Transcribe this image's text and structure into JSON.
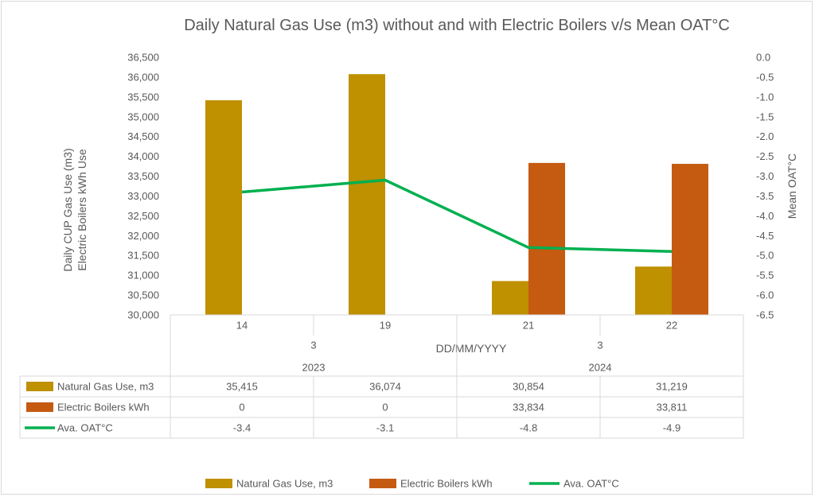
{
  "chart_data": {
    "type": "bar",
    "title": "Daily Natural Gas Use (m3) without and with Electric Boilers v/s Mean OAT°C",
    "xlabel": "DD/MM/YYYY",
    "ylabel_line1": "Daily CUP Gas Use (m3)",
    "ylabel_line2": "Electric Boilers kWh Use",
    "y2label": "Mean OAT°C",
    "ylim": [
      30000,
      36500
    ],
    "y_ticks": [
      "30,000",
      "30,500",
      "31,000",
      "31,500",
      "32,000",
      "32,500",
      "33,000",
      "33,500",
      "34,000",
      "34,500",
      "35,000",
      "35,500",
      "36,000",
      "36,500"
    ],
    "y2lim": [
      -6.5,
      0
    ],
    "y2_ticks": [
      "0.0",
      "-0.5",
      "-1.0",
      "-1.5",
      "-2.0",
      "-2.5",
      "-3.0",
      "-3.5",
      "-4.0",
      "-4.5",
      "-5.0",
      "-5.5",
      "-6.0",
      "-6.5"
    ],
    "categories": [
      "14",
      "19",
      "21",
      "22"
    ],
    "months": [
      "3",
      "3"
    ],
    "years": [
      "2023",
      "2024"
    ],
    "series": [
      {
        "name": "Natural Gas Use, m3",
        "kind": "bar",
        "color": "#bf9000",
        "values": [
          35415,
          36074,
          30854,
          31219
        ],
        "labels": [
          "35,415",
          "36,074",
          "30,854",
          "31,219"
        ]
      },
      {
        "name": "Electric Boilers kWh",
        "kind": "bar",
        "color": "#c55a11",
        "values": [
          0,
          0,
          33834,
          33811
        ],
        "labels": [
          "0",
          "0",
          "33,834",
          "33,811"
        ]
      },
      {
        "name": "Ava. OAT°C",
        "kind": "line",
        "axis": "secondary",
        "color": "#00b050",
        "values": [
          -3.4,
          -3.1,
          -4.8,
          -4.9
        ],
        "labels": [
          "-3.4",
          "-3.1",
          "-4.8",
          "-4.9"
        ]
      }
    ],
    "grid": false,
    "legend": "bottom",
    "data_table": true
  }
}
